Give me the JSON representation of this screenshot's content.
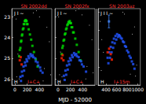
{
  "chart_data": [
    {
      "type": "scatter",
      "annotations": [
        {
          "text": "J I ~",
          "color": "#ffffff"
        },
        {
          "text": "H",
          "color": "#ffffff"
        },
        {
          "text": "SN 2002dd",
          "color": "#ff3333"
        },
        {
          "text": "I+C+",
          "color": "#ff3333"
        }
      ],
      "xlim": [
        51950,
        52600
      ],
      "ylim": [
        26.3,
        22.6
      ],
      "xticks": [
        {
          "value": 52000,
          "label": "0"
        },
        {
          "value": 52200,
          "label": "200"
        },
        {
          "value": 52400,
          "label": "400"
        }
      ],
      "yticks": [
        23,
        24,
        25,
        26
      ],
      "grid": false,
      "series": [
        {
          "color": "#00dd00",
          "marker": "square",
          "x": [
            52080,
            52100,
            52115,
            52130,
            52145,
            52160,
            52175,
            52190,
            52205,
            52225,
            52245,
            52265,
            52285,
            52310,
            52340,
            52370,
            52070,
            52090,
            52105,
            52120,
            52140,
            52155,
            52170,
            52185,
            52200
          ],
          "y": [
            24.6,
            24.2,
            23.9,
            23.6,
            23.35,
            23.2,
            23.15,
            23.2,
            23.35,
            23.6,
            23.85,
            24.1,
            24.4,
            24.7,
            25.05,
            25.4,
            24.9,
            24.5,
            24.15,
            23.85,
            23.55,
            23.35,
            23.2,
            23.2,
            23.35
          ]
        },
        {
          "color": "#2255ff",
          "marker": "square",
          "x": [
            52090,
            52115,
            52140,
            52165,
            52190,
            52220,
            52255,
            52290,
            52330,
            52370,
            52410,
            52450,
            52100,
            52125,
            52150,
            52175,
            52200,
            52230,
            52265,
            52300,
            52340,
            52380,
            52420
          ],
          "y": [
            25.9,
            25.65,
            25.4,
            25.2,
            25.05,
            24.9,
            24.8,
            24.85,
            25.0,
            25.2,
            25.45,
            25.7,
            26.1,
            25.85,
            25.6,
            25.35,
            25.15,
            25.0,
            24.9,
            24.95,
            25.15,
            25.35,
            25.6
          ]
        },
        {
          "color": "#ff2200",
          "marker": "square",
          "x": [
            52080,
            52095,
            52110
          ],
          "y": [
            25.1,
            24.95,
            25.3
          ]
        },
        {
          "color": "#ffffff",
          "marker": "dot",
          "x": [
            52020,
            52050,
            52300,
            52400,
            52480,
            52560,
            52030,
            52460,
            52520,
            52070,
            52350,
            52580
          ],
          "y": [
            23.1,
            24.8,
            22.8,
            23.0,
            25.5,
            24.2,
            25.9,
            26.1,
            23.5,
            26.0,
            22.7,
            25.8
          ]
        }
      ]
    },
    {
      "type": "scatter",
      "annotations": [
        {
          "text": "J I ~",
          "color": "#ffffff"
        },
        {
          "text": "H",
          "color": "#ffffff"
        },
        {
          "text": "SN 2002fx",
          "color": "#ff3333"
        },
        {
          "text": "I+C+",
          "color": "#ff3333"
        }
      ],
      "xlabel": "MJD - 52000",
      "xlim": [
        51950,
        52600
      ],
      "ylim": [
        26.3,
        22.6
      ],
      "xticks": [
        {
          "value": 52000,
          "label": "0"
        },
        {
          "value": 52200,
          "label": "200"
        },
        {
          "value": 52400,
          "label": "400"
        }
      ],
      "yticks": [
        23,
        24,
        25,
        26
      ],
      "tick_labels": "x",
      "grid": false,
      "series": [
        {
          "color": "#00dd00",
          "marker": "square",
          "x": [
            52070,
            52090,
            52110,
            52130,
            52150,
            52170,
            52190,
            52210,
            52230,
            52255,
            52280,
            52305,
            52335,
            52365,
            52060,
            52080,
            52100,
            52120,
            52140,
            52160,
            52180,
            52200,
            52220,
            52245
          ],
          "y": [
            24.5,
            24.15,
            23.85,
            23.6,
            23.4,
            23.25,
            23.2,
            23.3,
            23.5,
            23.75,
            24.05,
            24.35,
            24.7,
            25.1,
            24.8,
            24.4,
            24.1,
            23.8,
            23.55,
            23.35,
            23.25,
            23.3,
            23.5,
            23.75
          ]
        },
        {
          "color": "#2255ff",
          "marker": "square",
          "x": [
            52095,
            52120,
            52145,
            52170,
            52195,
            52225,
            52260,
            52295,
            52335,
            52375,
            52415,
            52455,
            52108,
            52133,
            52158,
            52183,
            52208,
            52238,
            52273,
            52308,
            52348,
            52388
          ],
          "y": [
            25.85,
            25.6,
            25.35,
            25.15,
            25.0,
            24.85,
            24.75,
            24.8,
            24.95,
            25.15,
            25.4,
            25.65,
            26.05,
            25.8,
            25.55,
            25.3,
            25.1,
            24.95,
            24.85,
            24.9,
            25.1,
            25.3
          ]
        },
        {
          "color": "#ff2200",
          "marker": "square",
          "x": [
            52060,
            52075,
            52088
          ],
          "y": [
            25.0,
            24.85,
            25.1
          ]
        },
        {
          "color": "#ffffff",
          "marker": "dot",
          "x": [
            52010,
            52040,
            52290,
            52390,
            52470,
            52550,
            52025,
            52450,
            52510,
            52065,
            52340,
            52570
          ],
          "y": [
            23.0,
            24.7,
            22.7,
            22.9,
            25.4,
            24.1,
            25.8,
            26.0,
            23.4,
            25.9,
            22.6,
            25.7
          ]
        }
      ]
    },
    {
      "type": "scatter",
      "annotations": [
        {
          "text": "J I I ~",
          "color": "#ffffff"
        },
        {
          "text": "H",
          "color": "#ffffff"
        },
        {
          "text": "SN 2003az",
          "color": "#ff3333"
        },
        {
          "text": "I+15m",
          "color": "#ff3333"
        }
      ],
      "xlim": [
        52250,
        53050
      ],
      "ylim": [
        27.0,
        22.8
      ],
      "xticks": [
        {
          "value": 52400,
          "label": "400"
        },
        {
          "value": 52600,
          "label": "600"
        },
        {
          "value": 52800,
          "label": "800"
        },
        {
          "value": 53000,
          "label": "1000"
        }
      ],
      "yticks": [
        23,
        24,
        25,
        26,
        27
      ],
      "tick_labels": "x",
      "grid": false,
      "series": [
        {
          "color": "#2255ff",
          "marker": "square",
          "x": [
            52430,
            52460,
            52490,
            52520,
            52550,
            52580,
            52610,
            52645,
            52680,
            52720,
            52760,
            52800,
            52845,
            52890,
            52940,
            52445,
            52475,
            52505,
            52535,
            52565,
            52595,
            52628,
            52663,
            52700,
            52740,
            52780,
            52823,
            52868,
            52915
          ],
          "y": [
            25.5,
            25.2,
            24.9,
            24.65,
            24.45,
            24.3,
            24.2,
            24.25,
            24.4,
            24.6,
            24.85,
            25.1,
            25.4,
            25.7,
            26.1,
            25.8,
            25.5,
            25.2,
            24.95,
            24.7,
            24.5,
            24.35,
            24.3,
            24.45,
            24.65,
            24.9,
            25.2,
            25.5,
            25.85
          ]
        },
        {
          "color": "#ff2200",
          "marker": "square",
          "x": [
            52430,
            52460,
            52490,
            52510
          ],
          "y": [
            25.2,
            25.0,
            25.3,
            25.6
          ]
        },
        {
          "color": "#4488ff",
          "marker": "square",
          "x": [
            52455
          ],
          "y": [
            23.5
          ],
          "yerr": [
            0.35
          ]
        },
        {
          "color": "#ffffff",
          "marker": "dot",
          "x": [
            52290,
            52350,
            52750,
            52900,
            52980,
            52320,
            52860,
            52940,
            52310,
            52720,
            52960
          ],
          "y": [
            23.5,
            25.2,
            23.1,
            24.2,
            25.9,
            24.5,
            26.4,
            23.8,
            26.2,
            23.0,
            26.5
          ]
        }
      ]
    }
  ]
}
